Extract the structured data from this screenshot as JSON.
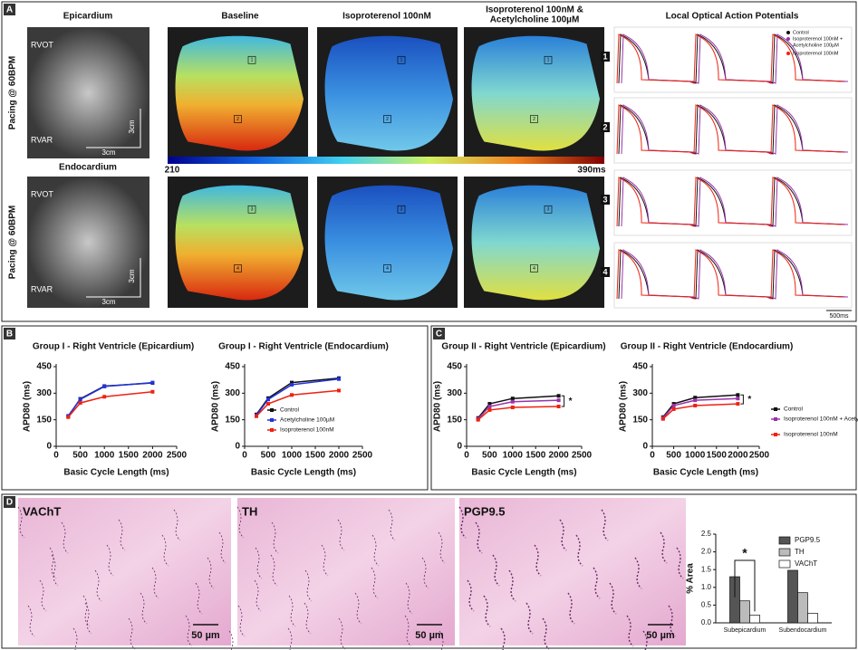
{
  "panels": [
    "A",
    "B",
    "C",
    "D"
  ],
  "panel_a": {
    "rows": [
      "Epicardium",
      "Endocardium"
    ],
    "columns": [
      [
        "Baseline"
      ],
      [
        "Isoproterenol 100nM"
      ],
      [
        "Isoproterenol 100nM &",
        "Acetylcholine 100µM"
      ]
    ],
    "traces_title": "Local Optical Action Potentials",
    "pacing": "Pacing @ 60BPM",
    "rvot": "RVOT",
    "rvar": "RVAR",
    "scale": "3cm",
    "colorbar_min": "210",
    "colorbar_max": "390ms",
    "roi_labels": [
      [
        "1",
        "2"
      ],
      [
        "3",
        "4"
      ]
    ],
    "trace_legend": [
      "Control",
      "Isoproterenol 100nM +",
      "Acetylcholine 100µM",
      "Isoproterenol 100nM"
    ],
    "trace_rows": [
      "1",
      "2",
      "3",
      "4"
    ],
    "time_scale": "500ms"
  },
  "panel_d": {
    "images": [
      "VAChT",
      "TH",
      "PGP9.5"
    ],
    "scale": "50 µm"
  },
  "chart_data": [
    {
      "type": "line",
      "title": "Group I - Right Ventricle (Epicardium)",
      "x_label": "Basic Cycle Length (ms)",
      "y_label": "APD80 (ms)",
      "x": [
        250,
        500,
        1000,
        2000
      ],
      "xlim": [
        0,
        2500
      ],
      "xticks": [
        0,
        500,
        1000,
        1500,
        2000,
        2500
      ],
      "ylim": [
        0,
        450
      ],
      "yticks": [
        0,
        150,
        300,
        450
      ],
      "series": [
        {
          "name": "Control",
          "color": "#111111",
          "values": [
            170,
            268,
            340,
            358
          ]
        },
        {
          "name": "Acetylcholine 100µM",
          "color": "#2233dd",
          "values": [
            172,
            265,
            338,
            360
          ]
        },
        {
          "name": "Isoproterenol 100nM",
          "color": "#ee2211",
          "values": [
            165,
            245,
            280,
            308
          ]
        }
      ]
    },
    {
      "type": "line",
      "title": "Group I - Right Ventricle (Endocardium)",
      "x_label": "Basic Cycle Length (ms)",
      "y_label": "APD80 (ms)",
      "x": [
        250,
        500,
        1000,
        2000
      ],
      "xlim": [
        0,
        2500
      ],
      "xticks": [
        0,
        500,
        1000,
        1500,
        2000,
        2500
      ],
      "ylim": [
        0,
        450
      ],
      "yticks": [
        0,
        150,
        300,
        450
      ],
      "legend": "lower right",
      "series": [
        {
          "name": "Control",
          "color": "#111111",
          "values": [
            180,
            272,
            360,
            385
          ]
        },
        {
          "name": "Acetylcholine 100µM",
          "color": "#2233dd",
          "values": [
            175,
            265,
            348,
            380
          ]
        },
        {
          "name": "Isoproterenol 100nM",
          "color": "#ee2211",
          "values": [
            170,
            240,
            290,
            315
          ]
        }
      ]
    },
    {
      "type": "line",
      "title": "Group II - Right Ventricle (Epicardium)",
      "x_label": "Basic Cycle Length (ms)",
      "y_label": "APD80 (ms)",
      "x": [
        250,
        500,
        1000,
        2000
      ],
      "xlim": [
        0,
        2500
      ],
      "xticks": [
        0,
        500,
        1000,
        1500,
        2000,
        2500
      ],
      "ylim": [
        0,
        450
      ],
      "yticks": [
        0,
        150,
        300,
        450
      ],
      "annotation": "*",
      "series": [
        {
          "name": "Control",
          "color": "#111111",
          "values": [
            160,
            240,
            270,
            285
          ]
        },
        {
          "name": "Isoproterenol 100nM + Acetylcholine 100µM",
          "color": "#9933aa",
          "values": [
            155,
            225,
            252,
            260
          ]
        },
        {
          "name": "Isoproterenol 100nM",
          "color": "#ee2211",
          "values": [
            150,
            205,
            220,
            225
          ]
        }
      ]
    },
    {
      "type": "line",
      "title": "Group II - Right Ventricle (Endocardium)",
      "x_label": "Basic Cycle Length (ms)",
      "y_label": "APD80 (ms)",
      "x": [
        250,
        500,
        1000,
        2000
      ],
      "xlim": [
        0,
        2500
      ],
      "xticks": [
        0,
        500,
        1000,
        1500,
        2000,
        2500
      ],
      "ylim": [
        0,
        450
      ],
      "yticks": [
        0,
        150,
        300,
        450
      ],
      "annotation": "*",
      "legend": "right",
      "series": [
        {
          "name": "Control",
          "color": "#111111",
          "values": [
            165,
            240,
            275,
            290
          ]
        },
        {
          "name": "Isoproterenol 100nM + Acetylcholine 100µM",
          "color": "#9933aa",
          "values": [
            160,
            230,
            260,
            270
          ]
        },
        {
          "name": "Isoproterenol 100nM",
          "color": "#ee2211",
          "values": [
            155,
            210,
            230,
            240
          ]
        }
      ]
    },
    {
      "type": "bar",
      "y_label": "% Area",
      "categories": [
        "Subepicardium",
        "Subendocardium"
      ],
      "ylim": [
        0,
        2.5
      ],
      "yticks": [
        {
          "value": 0,
          "label": "0.0"
        },
        0.5,
        {
          "value": 1,
          "label": "1.0"
        },
        1.5,
        {
          "value": 2,
          "label": "2.0"
        },
        2.5
      ],
      "annotation": "*",
      "legend": "upper right",
      "series": [
        {
          "name": "PGP9.5",
          "color": "#555555",
          "values": [
            1.3,
            1.48
          ]
        },
        {
          "name": "TH",
          "color": "#bbbbbb",
          "values": [
            0.62,
            0.85
          ]
        },
        {
          "name": "VAChT",
          "color": "#ffffff",
          "values": [
            0.22,
            0.27
          ]
        }
      ]
    }
  ]
}
